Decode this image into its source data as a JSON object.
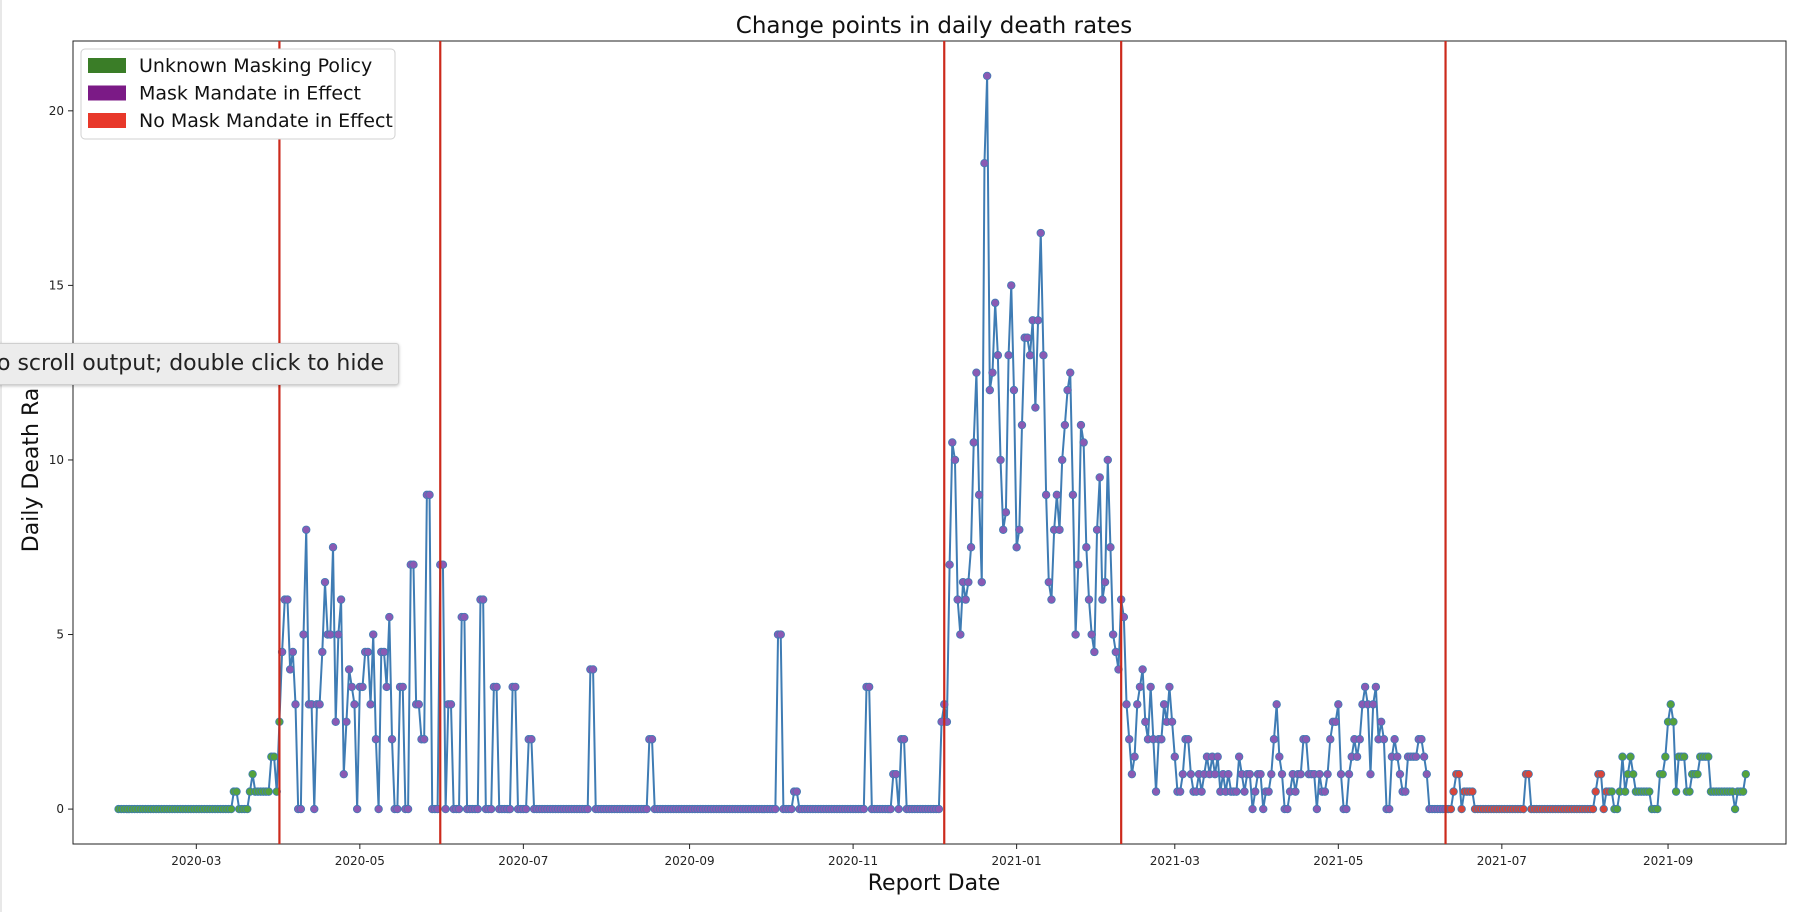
{
  "tooltip": {
    "text": "o scroll output; double click to hide"
  },
  "chart_data": {
    "type": "line",
    "title": "Change points in daily death rates",
    "xlabel": "Report Date",
    "ylabel": "Daily Death Ra",
    "ylim": [
      -1,
      22
    ],
    "xlim": [
      "2020-01-15",
      "2021-10-15"
    ],
    "yticks": [
      0,
      5,
      10,
      15,
      20
    ],
    "xticks": [
      "2020-03",
      "2020-05",
      "2020-07",
      "2020-09",
      "2020-11",
      "2021-01",
      "2021-03",
      "2021-05",
      "2021-07",
      "2021-09"
    ],
    "grid": false,
    "legend_position": "top-left",
    "legend": [
      {
        "label": "Unknown Masking Policy",
        "color": "#3a7d27"
      },
      {
        "label": "Mask Mandate in Effect",
        "color": "#7b1a86"
      },
      {
        "label": "No Mask Mandate in Effect",
        "color": "#e8382a"
      }
    ],
    "line_color": "#3f7cb4",
    "changepoint_color": "#cc2a1c",
    "change_points": [
      "2020-04-01",
      "2020-05-31",
      "2020-12-05",
      "2021-02-09",
      "2021-06-10"
    ],
    "start_date": "2020-02-01",
    "policy_segments": [
      {
        "policy": "unknown",
        "from": "2020-02-01",
        "to": "2020-04-01"
      },
      {
        "policy": "mask",
        "from": "2020-04-02",
        "to": "2021-06-10"
      },
      {
        "policy": "no_mask",
        "from": "2021-06-11",
        "to": "2021-08-10"
      },
      {
        "policy": "unknown",
        "from": "2021-08-11",
        "to": "2021-09-30"
      }
    ],
    "values": [
      0,
      0,
      0,
      0,
      0,
      0,
      0,
      0,
      0,
      0,
      0,
      0,
      0,
      0,
      0,
      0,
      0,
      0,
      0,
      0,
      0,
      0,
      0,
      0,
      0,
      0,
      0,
      0,
      0,
      0,
      0,
      0,
      0,
      0,
      0,
      0,
      0,
      0,
      0,
      0,
      0,
      0,
      0,
      0.5,
      0.5,
      0,
      0,
      0,
      0,
      0.5,
      1,
      0.5,
      0.5,
      0.5,
      0.5,
      0.5,
      0.5,
      1.5,
      1.5,
      0.5,
      2.5,
      4.5,
      6,
      6,
      4,
      4.5,
      3,
      0,
      0,
      5,
      8,
      3,
      3,
      0,
      3,
      3,
      4.5,
      6.5,
      5,
      5,
      7.5,
      2.5,
      5,
      6,
      1,
      2.5,
      4,
      3.5,
      3,
      0,
      3.5,
      3.5,
      4.5,
      4.5,
      3,
      5,
      2,
      0,
      4.5,
      4.5,
      3.5,
      5.5,
      2,
      0,
      0,
      3.5,
      3.5,
      0,
      0,
      7,
      7,
      3,
      3,
      2,
      2,
      9,
      9,
      0,
      0,
      0,
      7,
      7,
      0,
      3,
      3,
      0,
      0,
      0,
      5.5,
      5.5,
      0,
      0,
      0,
      0,
      0,
      6,
      6,
      0,
      0,
      0,
      3.5,
      3.5,
      0,
      0,
      0,
      0,
      0,
      3.5,
      3.5,
      0,
      0,
      0,
      0,
      2,
      2,
      0,
      0,
      0,
      0,
      0,
      0,
      0,
      0,
      0,
      0,
      0,
      0,
      0,
      0,
      0,
      0,
      0,
      0,
      0,
      0,
      0,
      4,
      4,
      0,
      0,
      0,
      0,
      0,
      0,
      0,
      0,
      0,
      0,
      0,
      0,
      0,
      0,
      0,
      0,
      0,
      0,
      0,
      0,
      2,
      2,
      0,
      0,
      0,
      0,
      0,
      0,
      0,
      0,
      0,
      0,
      0,
      0,
      0,
      0,
      0,
      0,
      0,
      0,
      0,
      0,
      0,
      0,
      0,
      0,
      0,
      0,
      0,
      0,
      0,
      0,
      0,
      0,
      0,
      0,
      0,
      0,
      0,
      0,
      0,
      0,
      0,
      0,
      0,
      0,
      0,
      0,
      5,
      5,
      0,
      0,
      0,
      0,
      0.5,
      0.5,
      0,
      0,
      0,
      0,
      0,
      0,
      0,
      0,
      0,
      0,
      0,
      0,
      0,
      0,
      0,
      0,
      0,
      0,
      0,
      0,
      0,
      0,
      0,
      0,
      0,
      3.5,
      3.5,
      0,
      0,
      0,
      0,
      0,
      0,
      0,
      0,
      1,
      1,
      0,
      2,
      2,
      0,
      0,
      0,
      0,
      0,
      0,
      0,
      0,
      0,
      0,
      0,
      0,
      0,
      2.5,
      3,
      2.5,
      7,
      10.5,
      10,
      6,
      5,
      6.5,
      6,
      6.5,
      7.5,
      10.5,
      12.5,
      9,
      6.5,
      18.5,
      21,
      12,
      12.5,
      14.5,
      13,
      10,
      8,
      8.5,
      13,
      15,
      12,
      7.5,
      8,
      11,
      13.5,
      13.5,
      13,
      14,
      11.5,
      14,
      16.5,
      13,
      9,
      6.5,
      6,
      8,
      9,
      8,
      10,
      11,
      12,
      12.5,
      9,
      5,
      7,
      11,
      10.5,
      7.5,
      6,
      5,
      4.5,
      8,
      9.5,
      6,
      6.5,
      10,
      7.5,
      5,
      4.5,
      4,
      6,
      5.5,
      3,
      2,
      1,
      1.5,
      3,
      3.5,
      4,
      2.5,
      2,
      3.5,
      2,
      0.5,
      2,
      2,
      3,
      2.5,
      3.5,
      2.5,
      1.5,
      0.5,
      0.5,
      1,
      2,
      2,
      1,
      0.5,
      0.5,
      1,
      0.5,
      1,
      1.5,
      1,
      1.5,
      1,
      1.5,
      0.5,
      1,
      0.5,
      1,
      0.5,
      0.5,
      0.5,
      1.5,
      1,
      0.5,
      1,
      1,
      0,
      0.5,
      1,
      1,
      0,
      0.5,
      0.5,
      1,
      2,
      3,
      1.5,
      1,
      0,
      0,
      0.5,
      1,
      0.5,
      1,
      1,
      2,
      2,
      1,
      1,
      1,
      0,
      1,
      0.5,
      0.5,
      1,
      2,
      2.5,
      2.5,
      3,
      1,
      0,
      0,
      1,
      1.5,
      2,
      1.5,
      2,
      3,
      3.5,
      3,
      1,
      3,
      3.5,
      2,
      2.5,
      2,
      0,
      0,
      1.5,
      2,
      1.5,
      1,
      0.5,
      0.5,
      1.5,
      1.5,
      1.5,
      1.5,
      2,
      2,
      1.5,
      1,
      0,
      0,
      0,
      0,
      0,
      0,
      0,
      0,
      0,
      0.5,
      1,
      1,
      0,
      0.5,
      0.5,
      0.5,
      0.5,
      0,
      0,
      0,
      0,
      0,
      0,
      0,
      0,
      0,
      0,
      0,
      0,
      0,
      0,
      0,
      0,
      0,
      0,
      0,
      1,
      1,
      0,
      0,
      0,
      0,
      0,
      0,
      0,
      0,
      0,
      0,
      0,
      0,
      0,
      0,
      0,
      0,
      0,
      0,
      0,
      0,
      0,
      0,
      0,
      0,
      0.5,
      1,
      1,
      0,
      0.5,
      0.5,
      0.5,
      0,
      0,
      0.5,
      1.5,
      0.5,
      1,
      1.5,
      1,
      0.5,
      0.5,
      0.5,
      0.5,
      0.5,
      0.5,
      0,
      0,
      0,
      1,
      1,
      1.5,
      2.5,
      3,
      2.5,
      0.5,
      1.5,
      1.5,
      1.5,
      0.5,
      0.5,
      1,
      1,
      1,
      1.5,
      1.5,
      1.5,
      1.5,
      0.5,
      0.5,
      0.5,
      0.5,
      0.5,
      0.5,
      0.5,
      0.5,
      0.5,
      0,
      0.5,
      0.5,
      0.5,
      1
    ]
  }
}
